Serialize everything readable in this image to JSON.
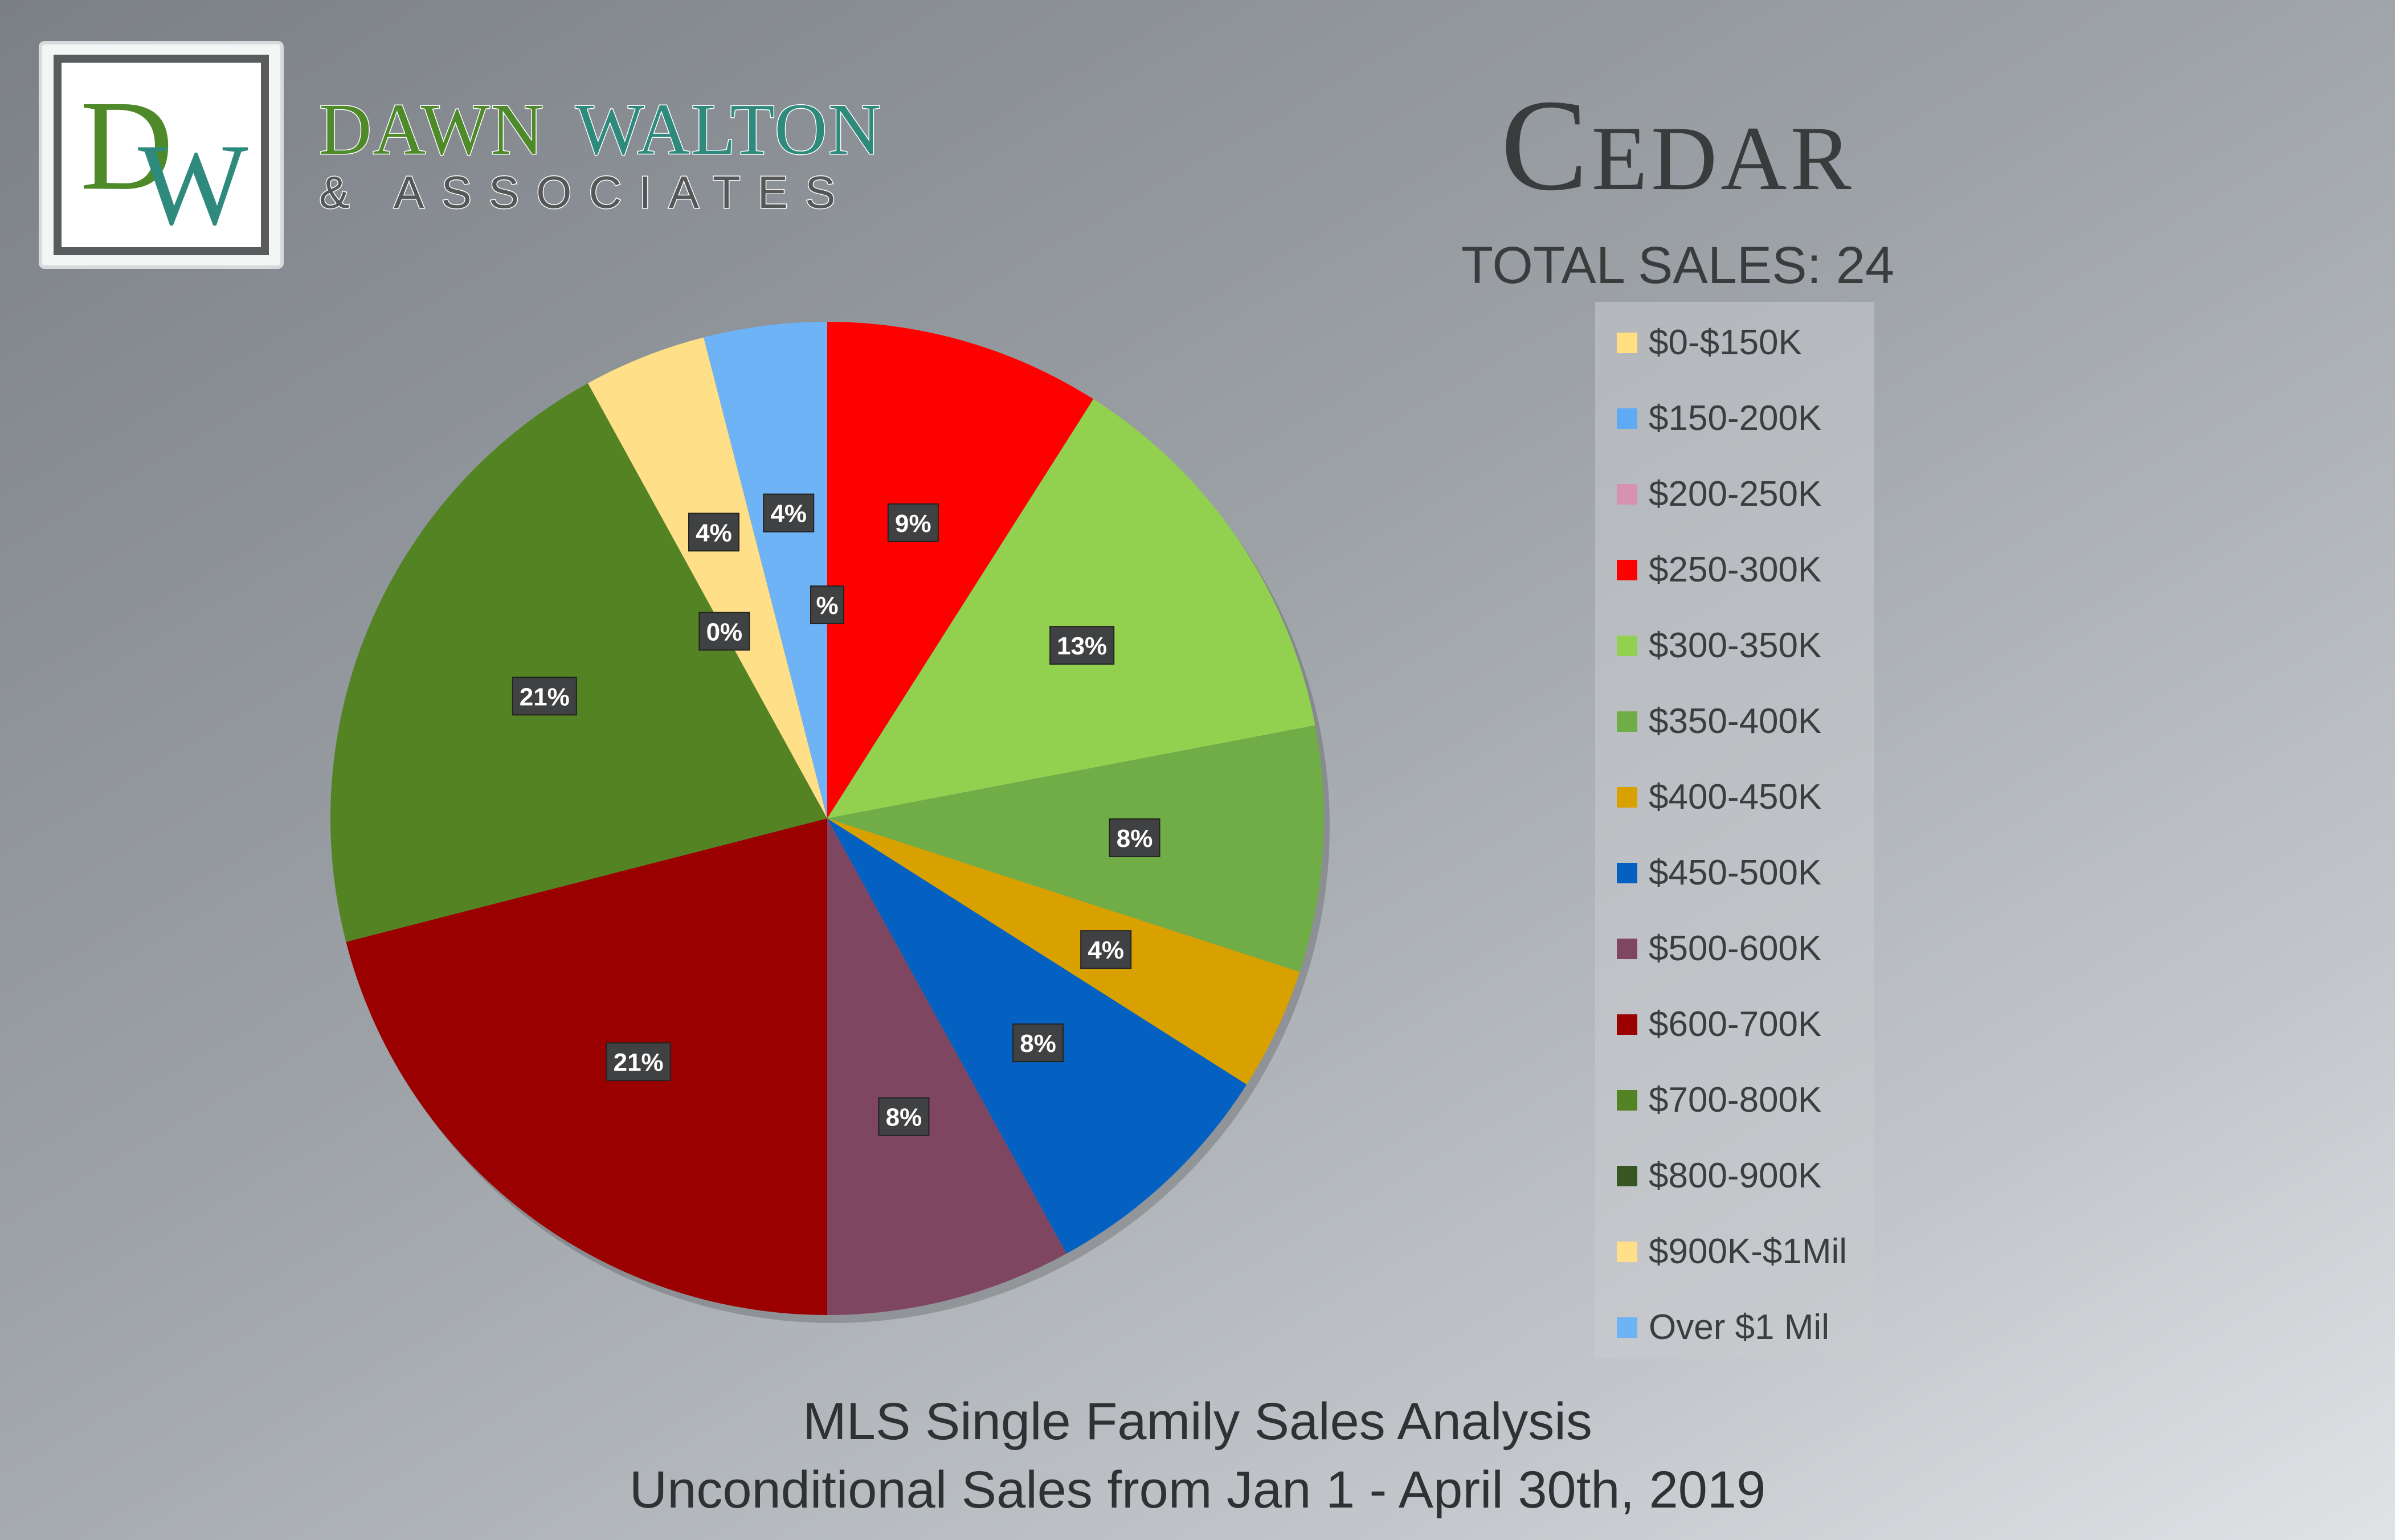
{
  "logo": {
    "monogram": "DW",
    "name_line1": "DAWN WALTON",
    "name_line2": "& ASSOCIATES"
  },
  "header": {
    "title": "Cedar",
    "subtitle": "TOTAL SALES: 24"
  },
  "footer": {
    "line1": "MLS Single Family Sales Analysis",
    "line2": "Unconditional Sales from Jan 1 - April 30th, 2019"
  },
  "chart_data": {
    "type": "pie",
    "title": "Cedar",
    "legend_position": "right",
    "slices": [
      {
        "label": "$0-$150K",
        "value": 0,
        "display": "%",
        "color": "#ffdf7f"
      },
      {
        "label": "$150-200K",
        "value": 0,
        "display": "",
        "color": "#5eaaf5"
      },
      {
        "label": "$200-250K",
        "value": 0,
        "display": "",
        "color": "#d792b0"
      },
      {
        "label": "$250-300K",
        "value": 9,
        "display": "9%",
        "color": "#fe0000"
      },
      {
        "label": "$300-350K",
        "value": 13,
        "display": "13%",
        "color": "#92d050"
      },
      {
        "label": "$350-400K",
        "value": 8,
        "display": "8%",
        "color": "#70ad47"
      },
      {
        "label": "$400-450K",
        "value": 4,
        "display": "4%",
        "color": "#d9a100"
      },
      {
        "label": "$450-500K",
        "value": 8,
        "display": "8%",
        "color": "#0561c1"
      },
      {
        "label": "$500-600K",
        "value": 8,
        "display": "8%",
        "color": "#7f4662"
      },
      {
        "label": "$600-700K",
        "value": 21,
        "display": "21%",
        "color": "#9a0000"
      },
      {
        "label": "$700-800K",
        "value": 21,
        "display": "21%",
        "color": "#548323"
      },
      {
        "label": "$800-900K",
        "value": 0,
        "display": "0%",
        "color": "#375623"
      },
      {
        "label": "$900K-$1Mil",
        "value": 4,
        "display": "4%",
        "color": "#ffdf87"
      },
      {
        "label": "Over $1 Mil",
        "value": 4,
        "display": "4%",
        "color": "#6db3f6"
      }
    ]
  }
}
